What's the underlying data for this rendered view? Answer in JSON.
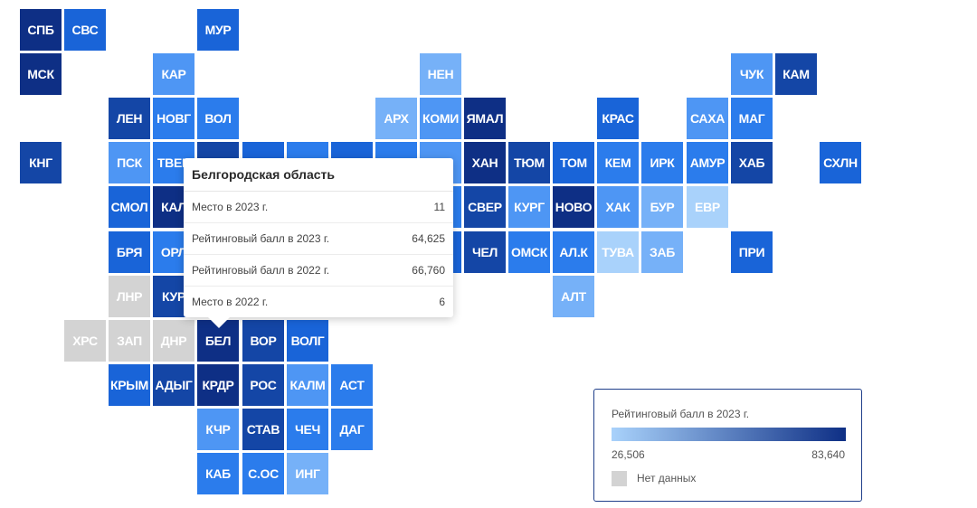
{
  "map": {
    "colors": {
      "c1": "#0e2f85",
      "c2": "#1446a6",
      "c3": "#1964d8",
      "c4": "#2b7cec",
      "c5": "#4e96f4",
      "c6": "#76b1f8",
      "c7": "#a9d2fb",
      "nodata": "#d3d3d3"
    },
    "tiles": [
      {
        "label": "СПБ",
        "col": 0,
        "row": 0,
        "color": "c1"
      },
      {
        "label": "СВС",
        "col": 1,
        "row": 0,
        "color": "c3"
      },
      {
        "label": "МУР",
        "col": 4,
        "row": 0,
        "color": "c3"
      },
      {
        "label": "МСК",
        "col": 0,
        "row": 1,
        "color": "c1"
      },
      {
        "label": "КАР",
        "col": 3,
        "row": 1,
        "color": "c5"
      },
      {
        "label": "НЕН",
        "col": 9,
        "row": 1,
        "color": "c6"
      },
      {
        "label": "ЧУК",
        "col": 16,
        "row": 1,
        "color": "c5"
      },
      {
        "label": "КАМ",
        "col": 17,
        "row": 1,
        "color": "c2"
      },
      {
        "label": "ЛЕН",
        "col": 2,
        "row": 2,
        "color": "c2"
      },
      {
        "label": "НОВГ",
        "col": 3,
        "row": 2,
        "color": "c4"
      },
      {
        "label": "ВОЛ",
        "col": 4,
        "row": 2,
        "color": "c4"
      },
      {
        "label": "АРХ",
        "col": 8,
        "row": 2,
        "color": "c6"
      },
      {
        "label": "КОМИ",
        "col": 9,
        "row": 2,
        "color": "c5"
      },
      {
        "label": "ЯМАЛ",
        "col": 10,
        "row": 2,
        "color": "c1"
      },
      {
        "label": "КРАС",
        "col": 13,
        "row": 2,
        "color": "c3"
      },
      {
        "label": "САХА",
        "col": 15,
        "row": 2,
        "color": "c5"
      },
      {
        "label": "МАГ",
        "col": 16,
        "row": 2,
        "color": "c4"
      },
      {
        "label": "КНГ",
        "col": 0,
        "row": 3,
        "color": "c2"
      },
      {
        "label": "ПСК",
        "col": 2,
        "row": 3,
        "color": "c5"
      },
      {
        "label": "ТВЕР",
        "col": 3,
        "row": 3,
        "color": "c4"
      },
      {
        "label": "",
        "col": 4,
        "row": 3,
        "color": "c2"
      },
      {
        "label": "",
        "col": 5,
        "row": 3,
        "color": "c3"
      },
      {
        "label": "",
        "col": 6,
        "row": 3,
        "color": "c4"
      },
      {
        "label": "",
        "col": 7,
        "row": 3,
        "color": "c3"
      },
      {
        "label": "",
        "col": 8,
        "row": 3,
        "color": "c4"
      },
      {
        "label": "",
        "col": 9,
        "row": 3,
        "color": "c5"
      },
      {
        "label": "ХАН",
        "col": 10,
        "row": 3,
        "color": "c1"
      },
      {
        "label": "ТЮМ",
        "col": 11,
        "row": 3,
        "color": "c2"
      },
      {
        "label": "ТОМ",
        "col": 12,
        "row": 3,
        "color": "c3"
      },
      {
        "label": "КЕМ",
        "col": 13,
        "row": 3,
        "color": "c4"
      },
      {
        "label": "ИРК",
        "col": 14,
        "row": 3,
        "color": "c4"
      },
      {
        "label": "АМУР",
        "col": 15,
        "row": 3,
        "color": "c4"
      },
      {
        "label": "ХАБ",
        "col": 16,
        "row": 3,
        "color": "c2"
      },
      {
        "label": "СХЛН",
        "col": 18,
        "row": 3,
        "color": "c3"
      },
      {
        "label": "СМОЛ",
        "col": 2,
        "row": 4,
        "color": "c3"
      },
      {
        "label": "КАЛ",
        "col": 3,
        "row": 4,
        "color": "c1"
      },
      {
        "label": "",
        "col": 4,
        "row": 4,
        "color": "c3"
      },
      {
        "label": "",
        "col": 5,
        "row": 4,
        "color": "c2"
      },
      {
        "label": "",
        "col": 6,
        "row": 4,
        "color": "c3"
      },
      {
        "label": "",
        "col": 7,
        "row": 4,
        "color": "c4"
      },
      {
        "label": "",
        "col": 8,
        "row": 4,
        "color": "c3"
      },
      {
        "label": "М",
        "col": 9,
        "row": 4,
        "color": "c4"
      },
      {
        "label": "СВЕР",
        "col": 10,
        "row": 4,
        "color": "c2"
      },
      {
        "label": "КУРГ",
        "col": 11,
        "row": 4,
        "color": "c5"
      },
      {
        "label": "НОВО",
        "col": 12,
        "row": 4,
        "color": "c1"
      },
      {
        "label": "ХАК",
        "col": 13,
        "row": 4,
        "color": "c5"
      },
      {
        "label": "БУР",
        "col": 14,
        "row": 4,
        "color": "c6"
      },
      {
        "label": "ЕВР",
        "col": 15,
        "row": 4,
        "color": "c7"
      },
      {
        "label": "БРЯ",
        "col": 2,
        "row": 5,
        "color": "c3"
      },
      {
        "label": "ОРЛ",
        "col": 3,
        "row": 5,
        "color": "c4"
      },
      {
        "label": "",
        "col": 4,
        "row": 5,
        "color": "c3"
      },
      {
        "label": "",
        "col": 5,
        "row": 5,
        "color": "c2"
      },
      {
        "label": "",
        "col": 6,
        "row": 5,
        "color": "c3"
      },
      {
        "label": "",
        "col": 7,
        "row": 5,
        "color": "c3"
      },
      {
        "label": "",
        "col": 8,
        "row": 5,
        "color": "c4"
      },
      {
        "label": "К",
        "col": 9,
        "row": 5,
        "color": "c3"
      },
      {
        "label": "ЧЕЛ",
        "col": 10,
        "row": 5,
        "color": "c2"
      },
      {
        "label": "ОМСК",
        "col": 11,
        "row": 5,
        "color": "c4"
      },
      {
        "label": "АЛ.К",
        "col": 12,
        "row": 5,
        "color": "c4"
      },
      {
        "label": "ТУВА",
        "col": 13,
        "row": 5,
        "color": "c7"
      },
      {
        "label": "ЗАБ",
        "col": 14,
        "row": 5,
        "color": "c6"
      },
      {
        "label": "ПРИ",
        "col": 16,
        "row": 5,
        "color": "c3"
      },
      {
        "label": "ЛНР",
        "col": 2,
        "row": 6,
        "color": "nodata"
      },
      {
        "label": "КУР",
        "col": 3,
        "row": 6,
        "color": "c2"
      },
      {
        "label": "",
        "col": 4,
        "row": 6,
        "color": "c2"
      },
      {
        "label": "",
        "col": 5,
        "row": 6,
        "color": "c3"
      },
      {
        "label": "",
        "col": 6,
        "row": 6,
        "color": "c3"
      },
      {
        "label": "",
        "col": 7,
        "row": 6,
        "color": "c3"
      },
      {
        "label": "",
        "col": 8,
        "row": 6,
        "color": "c2"
      },
      {
        "label": "АЛТ",
        "col": 12,
        "row": 6,
        "color": "c6"
      },
      {
        "label": "ХРС",
        "col": 1,
        "row": 7,
        "color": "nodata"
      },
      {
        "label": "ЗАП",
        "col": 2,
        "row": 7,
        "color": "nodata"
      },
      {
        "label": "ДНР",
        "col": 3,
        "row": 7,
        "color": "nodata"
      },
      {
        "label": "БЕЛ",
        "col": 4,
        "row": 7,
        "color": "c1"
      },
      {
        "label": "ВОР",
        "col": 5,
        "row": 7,
        "color": "c2"
      },
      {
        "label": "ВОЛГ",
        "col": 6,
        "row": 7,
        "color": "c3"
      },
      {
        "label": "КРЫМ",
        "col": 2,
        "row": 8,
        "color": "c3"
      },
      {
        "label": "АДЫГ",
        "col": 3,
        "row": 8,
        "color": "c2"
      },
      {
        "label": "КРДР",
        "col": 4,
        "row": 8,
        "color": "c1"
      },
      {
        "label": "РОС",
        "col": 5,
        "row": 8,
        "color": "c2"
      },
      {
        "label": "КАЛМ",
        "col": 6,
        "row": 8,
        "color": "c5"
      },
      {
        "label": "АСТ",
        "col": 7,
        "row": 8,
        "color": "c4"
      },
      {
        "label": "КЧР",
        "col": 4,
        "row": 9,
        "color": "c5"
      },
      {
        "label": "СТАВ",
        "col": 5,
        "row": 9,
        "color": "c2"
      },
      {
        "label": "ЧЕЧ",
        "col": 6,
        "row": 9,
        "color": "c4"
      },
      {
        "label": "ДАГ",
        "col": 7,
        "row": 9,
        "color": "c4"
      },
      {
        "label": "КАБ",
        "col": 4,
        "row": 10,
        "color": "c4"
      },
      {
        "label": "С.ОС",
        "col": 5,
        "row": 10,
        "color": "c4"
      },
      {
        "label": "ИНГ",
        "col": 6,
        "row": 10,
        "color": "c6"
      }
    ]
  },
  "tooltip": {
    "title": "Белгородская область",
    "rows": [
      {
        "label": "Место в 2023 г.",
        "value": "11"
      },
      {
        "label": "Рейтинговый балл в 2023 г.",
        "value": "64,625"
      },
      {
        "label": "Рейтинговый балл в 2022 г.",
        "value": "66,760"
      },
      {
        "label": "Место в 2022 г.",
        "value": "6"
      }
    ]
  },
  "legend": {
    "title": "Рейтинговый балл в 2023 г.",
    "min": "26,506",
    "max": "83,640",
    "no_data": "Нет данных"
  }
}
